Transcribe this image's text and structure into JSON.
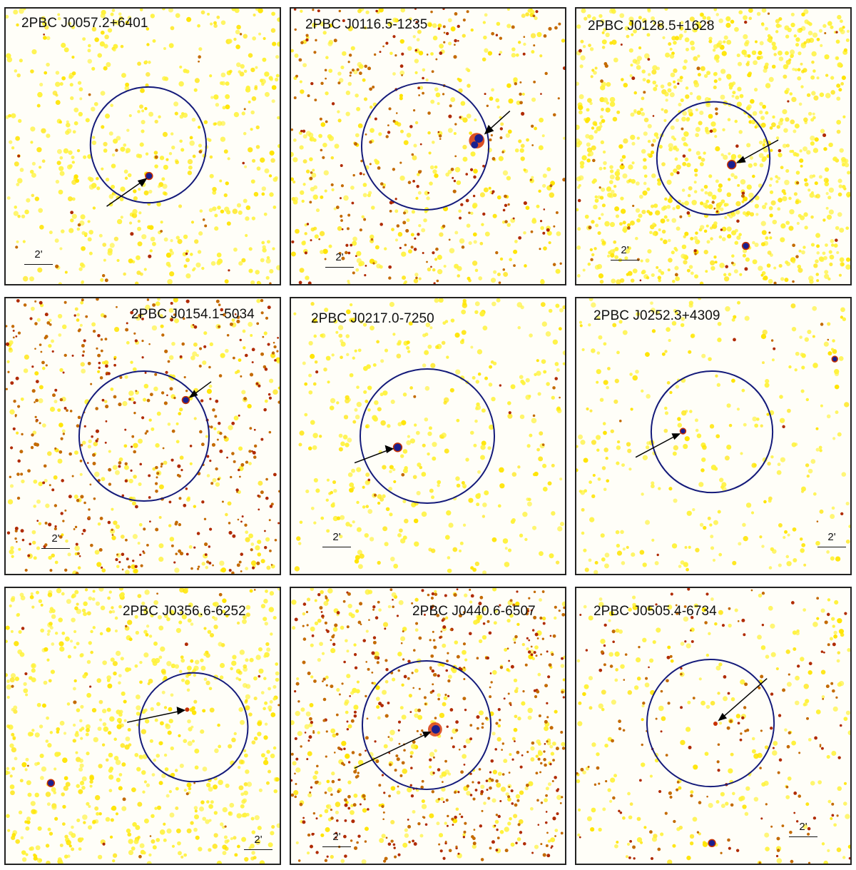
{
  "panels": [
    {
      "title": "2PBC J0057.2+6401",
      "scale_label": "2'",
      "seed": 11,
      "yellow": 520,
      "red": 25
    },
    {
      "title": "2PBC J0116.5-1235",
      "scale_label": "2'",
      "seed": 23,
      "yellow": 380,
      "red": 260
    },
    {
      "title": "2PBC J0128.5+1628",
      "scale_label": "2'",
      "seed": 37,
      "yellow": 950,
      "red": 60
    },
    {
      "title": "2PBC J0154.1-5034",
      "scale_label": "2'",
      "seed": 41,
      "yellow": 260,
      "red": 420
    },
    {
      "title": "2PBC J0217.0-7250",
      "scale_label": "2'",
      "seed": 53,
      "yellow": 380,
      "red": 12
    },
    {
      "title": "2PBC J0252.3+4309",
      "scale_label": "2'",
      "seed": 67,
      "yellow": 300,
      "red": 10
    },
    {
      "title": "2PBC J0356.6-6252",
      "scale_label": "2'",
      "seed": 71,
      "yellow": 700,
      "red": 20
    },
    {
      "title": "2PBC J0440.6-6507",
      "scale_label": "2'",
      "seed": 83,
      "yellow": 320,
      "red": 520
    },
    {
      "title": "2PBC J0505.4-6734",
      "scale_label": "2'",
      "seed": 97,
      "yellow": 240,
      "red": 170
    }
  ]
}
